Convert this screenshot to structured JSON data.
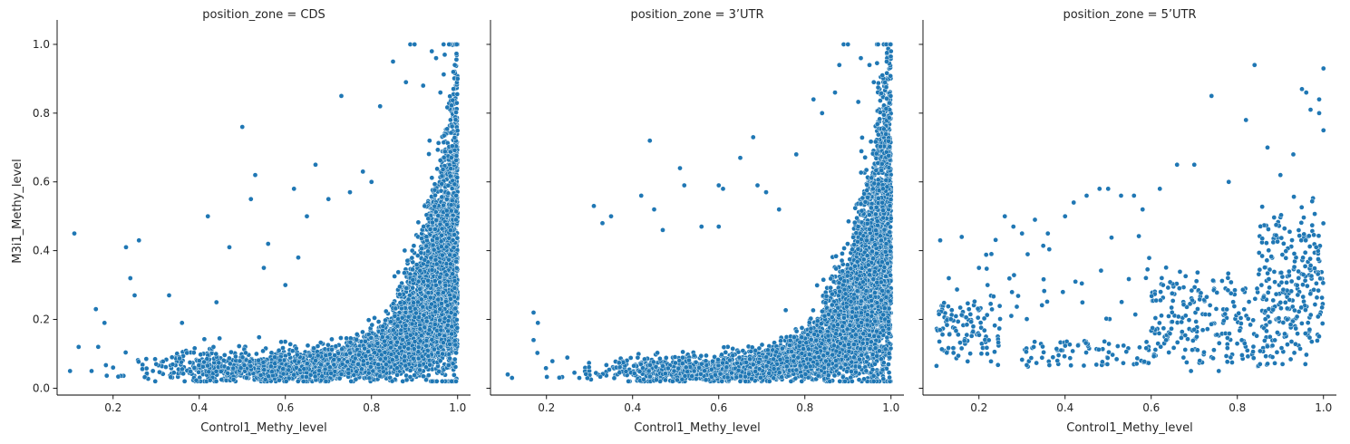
{
  "chart_data": {
    "type": "scatter",
    "style": {
      "point_color": "#1f77b4",
      "point_edge_color": "#ffffff",
      "background": "#ffffff",
      "grid": false,
      "shared_y_axis": true
    },
    "xlabel": "Control1_Methy_level",
    "ylabel": "M3i1_Methy_level",
    "xlim": [
      0.07,
      1.03
    ],
    "ylim": [
      -0.02,
      1.05
    ],
    "xticks": [
      0.2,
      0.4,
      0.6,
      0.8,
      1.0
    ],
    "xtick_labels": [
      "0.2",
      "0.4",
      "0.6",
      "0.8",
      "1.0"
    ],
    "yticks": [
      0.0,
      0.2,
      0.4,
      0.6,
      0.8,
      1.0
    ],
    "ytick_labels": [
      "0.0",
      "0.2",
      "0.4",
      "0.6",
      "0.8",
      "1.0"
    ],
    "panels": [
      {
        "title": "position_zone = CDS",
        "points": [
          [
            0.11,
            0.45
          ],
          [
            0.1,
            0.05
          ],
          [
            0.12,
            0.12
          ],
          [
            0.15,
            0.05
          ],
          [
            0.16,
            0.23
          ],
          [
            0.18,
            0.19
          ],
          [
            0.2,
            0.06
          ],
          [
            0.23,
            0.41
          ],
          [
            0.24,
            0.32
          ],
          [
            0.25,
            0.27
          ],
          [
            0.26,
            0.43
          ],
          [
            0.3,
            0.07
          ],
          [
            0.33,
            0.27
          ],
          [
            0.36,
            0.19
          ],
          [
            0.4,
            0.08
          ],
          [
            0.42,
            0.5
          ],
          [
            0.44,
            0.25
          ],
          [
            0.47,
            0.41
          ],
          [
            0.5,
            0.76
          ],
          [
            0.52,
            0.55
          ],
          [
            0.53,
            0.62
          ],
          [
            0.55,
            0.35
          ],
          [
            0.56,
            0.42
          ],
          [
            0.6,
            0.3
          ],
          [
            0.62,
            0.58
          ],
          [
            0.63,
            0.38
          ],
          [
            0.65,
            0.5
          ],
          [
            0.67,
            0.65
          ],
          [
            0.7,
            0.55
          ],
          [
            0.73,
            0.85
          ],
          [
            0.75,
            0.57
          ],
          [
            0.78,
            0.63
          ],
          [
            0.8,
            0.6
          ],
          [
            0.82,
            0.82
          ],
          [
            0.85,
            0.95
          ],
          [
            0.88,
            0.89
          ],
          [
            0.89,
            1.0
          ],
          [
            0.9,
            1.0
          ],
          [
            0.92,
            0.88
          ],
          [
            0.94,
            0.98
          ],
          [
            0.95,
            0.96
          ],
          [
            0.97,
            0.97
          ],
          [
            0.98,
            1.0
          ],
          [
            0.99,
            0.92
          ],
          [
            1.0,
            0.9
          ],
          [
            0.96,
            0.86
          ]
        ]
      },
      {
        "title": "position_zone = 3’UTR",
        "points": [
          [
            0.11,
            0.04
          ],
          [
            0.12,
            0.03
          ],
          [
            0.17,
            0.22
          ],
          [
            0.18,
            0.19
          ],
          [
            0.17,
            0.14
          ],
          [
            0.31,
            0.53
          ],
          [
            0.33,
            0.48
          ],
          [
            0.35,
            0.5
          ],
          [
            0.42,
            0.56
          ],
          [
            0.44,
            0.72
          ],
          [
            0.45,
            0.52
          ],
          [
            0.47,
            0.46
          ],
          [
            0.51,
            0.64
          ],
          [
            0.52,
            0.59
          ],
          [
            0.56,
            0.47
          ],
          [
            0.6,
            0.47
          ],
          [
            0.6,
            0.59
          ],
          [
            0.61,
            0.58
          ],
          [
            0.65,
            0.67
          ],
          [
            0.68,
            0.73
          ],
          [
            0.69,
            0.59
          ],
          [
            0.71,
            0.57
          ],
          [
            0.74,
            0.52
          ],
          [
            0.78,
            0.68
          ],
          [
            0.82,
            0.84
          ],
          [
            0.84,
            0.8
          ],
          [
            0.87,
            0.86
          ],
          [
            0.88,
            0.94
          ],
          [
            0.89,
            1.0
          ],
          [
            0.9,
            1.0
          ],
          [
            0.93,
            0.96
          ],
          [
            0.95,
            0.94
          ],
          [
            0.97,
            1.0
          ],
          [
            0.99,
            0.95
          ],
          [
            1.0,
            0.98
          ],
          [
            0.98,
            0.91
          ],
          [
            0.96,
            0.89
          ]
        ]
      },
      {
        "title": "position_zone = 5’UTR",
        "points": [
          [
            0.11,
            0.43
          ],
          [
            0.13,
            0.32
          ],
          [
            0.16,
            0.44
          ],
          [
            0.2,
            0.35
          ],
          [
            0.22,
            0.3
          ],
          [
            0.26,
            0.5
          ],
          [
            0.28,
            0.47
          ],
          [
            0.3,
            0.45
          ],
          [
            0.33,
            0.49
          ],
          [
            0.36,
            0.45
          ],
          [
            0.4,
            0.5
          ],
          [
            0.42,
            0.54
          ],
          [
            0.45,
            0.56
          ],
          [
            0.48,
            0.58
          ],
          [
            0.5,
            0.58
          ],
          [
            0.53,
            0.56
          ],
          [
            0.56,
            0.56
          ],
          [
            0.58,
            0.52
          ],
          [
            0.62,
            0.58
          ],
          [
            0.66,
            0.65
          ],
          [
            0.7,
            0.65
          ],
          [
            0.74,
            0.85
          ],
          [
            0.78,
            0.6
          ],
          [
            0.82,
            0.78
          ],
          [
            0.84,
            0.94
          ],
          [
            0.87,
            0.7
          ],
          [
            0.9,
            0.62
          ],
          [
            0.93,
            0.68
          ],
          [
            0.95,
            0.87
          ],
          [
            0.96,
            0.86
          ],
          [
            0.97,
            0.81
          ],
          [
            0.99,
            0.84
          ],
          [
            1.0,
            0.93
          ],
          [
            1.0,
            0.75
          ],
          [
            0.99,
            0.8
          ]
        ]
      }
    ]
  }
}
